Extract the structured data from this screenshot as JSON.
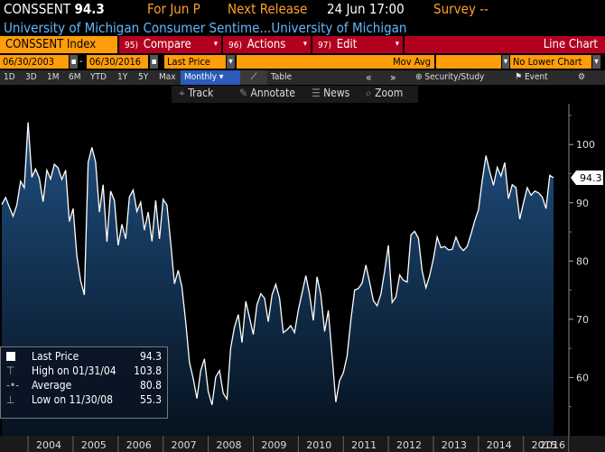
{
  "header": {
    "ticker": "CONSSENT",
    "last_value": "94.3",
    "for_label": "For Jun P",
    "next_release_label": "Next Release",
    "next_release_value": "24 Jun 17:00",
    "survey_label": "Survey --",
    "full_name": "University of Michigan Consumer Sentime...University of Michigan"
  },
  "menu": {
    "index_label": "CONSSENT Index",
    "compare_num": "95)",
    "compare_label": "Compare",
    "actions_num": "96)",
    "actions_label": "Actions",
    "edit_num": "97)",
    "edit_label": "Edit",
    "line_chart_label": "Line Chart"
  },
  "controls": {
    "start_date": "06/30/2003",
    "end_date": "06/30/2016",
    "price_field": "Last Price",
    "mov_avg_label": "Mov Avg",
    "lower_chart": "No Lower Chart",
    "periods": [
      "1D",
      "3D",
      "1M",
      "6M",
      "YTD",
      "1Y",
      "5Y",
      "Max"
    ],
    "frequency": "Monthly",
    "table_label": "Table",
    "security_label": "Security/Study",
    "event_label": "Event"
  },
  "toolbar": {
    "track": "Track",
    "annotate": "Annotate",
    "news": "News",
    "zoom": "Zoom"
  },
  "legend": {
    "last_price_label": "Last Price",
    "last_price_value": "94.3",
    "high_label": "High on 01/31/04",
    "high_value": "103.8",
    "average_label": "Average",
    "average_value": "80.8",
    "low_label": "Low on 11/30/08",
    "low_value": "55.3"
  },
  "colors": {
    "accent_orange": "#ff9d0a",
    "menu_red": "#b3001e",
    "name_blue": "#5fb8ff",
    "area_top": "#1f4f80",
    "area_bottom": "#06121f",
    "line": "#ffffff"
  },
  "chart_data": {
    "type": "area",
    "x_tick_labels": [
      "2004",
      "2005",
      "2006",
      "2007",
      "2008",
      "2009",
      "2010",
      "2011",
      "2012",
      "2013",
      "2014",
      "2015",
      "2016"
    ],
    "y_tick_labels": [
      "60",
      "70",
      "80",
      "90",
      "100"
    ],
    "ylim": [
      50,
      107
    ],
    "frequency": "monthly",
    "x_start": "2003-06",
    "last_value_label": "94.3",
    "values": [
      89.7,
      90.9,
      89.3,
      87.7,
      89.6,
      93.7,
      92.6,
      103.8,
      94.4,
      95.8,
      94.2,
      90.2,
      95.6,
      94.1,
      96.6,
      96.0,
      94.0,
      95.6,
      86.8,
      89.0,
      80.9,
      76.6,
      74.2,
      96.9,
      99.5,
      97.0,
      88.4,
      93.1,
      83.3,
      92.0,
      90.4,
      82.7,
      86.3,
      83.8,
      91.0,
      92.2,
      88.5,
      90.1,
      85.3,
      88.4,
      83.4,
      90.4,
      83.8,
      90.6,
      89.6,
      83.2,
      76.1,
      78.4,
      75.5,
      69.5,
      62.6,
      59.8,
      56.4,
      61.2,
      63.2,
      57.6,
      55.3,
      60.1,
      61.2,
      57.3,
      56.3,
      65.1,
      68.7,
      70.8,
      66.0,
      73.1,
      70.3,
      67.4,
      72.5,
      74.4,
      73.6,
      69.6,
      74.2,
      76.0,
      73.6,
      67.7,
      68.2,
      68.9,
      67.7,
      71.6,
      74.5,
      77.5,
      74.3,
      69.8,
      77.3,
      74.2,
      67.9,
      71.5,
      63.7,
      55.8,
      59.5,
      60.8,
      63.7,
      69.9,
      75.0,
      75.3,
      76.2,
      79.3,
      76.4,
      73.2,
      72.3,
      74.3,
      78.3,
      82.7,
      72.9,
      73.8,
      77.6,
      76.7,
      76.4,
      84.5,
      85.1,
      83.9,
      78.3,
      75.4,
      77.5,
      80.4,
      84.1,
      82.3,
      82.5,
      81.9,
      82.0,
      84.1,
      82.5,
      81.8,
      82.5,
      84.6,
      86.9,
      88.8,
      93.8,
      98.1,
      95.4,
      93.0,
      96.1,
      94.6,
      96.9,
      90.7,
      93.1,
      92.6,
      87.2,
      90.0,
      92.6,
      91.3,
      92.0,
      91.7,
      91.0,
      89.0,
      94.7,
      94.3
    ]
  }
}
